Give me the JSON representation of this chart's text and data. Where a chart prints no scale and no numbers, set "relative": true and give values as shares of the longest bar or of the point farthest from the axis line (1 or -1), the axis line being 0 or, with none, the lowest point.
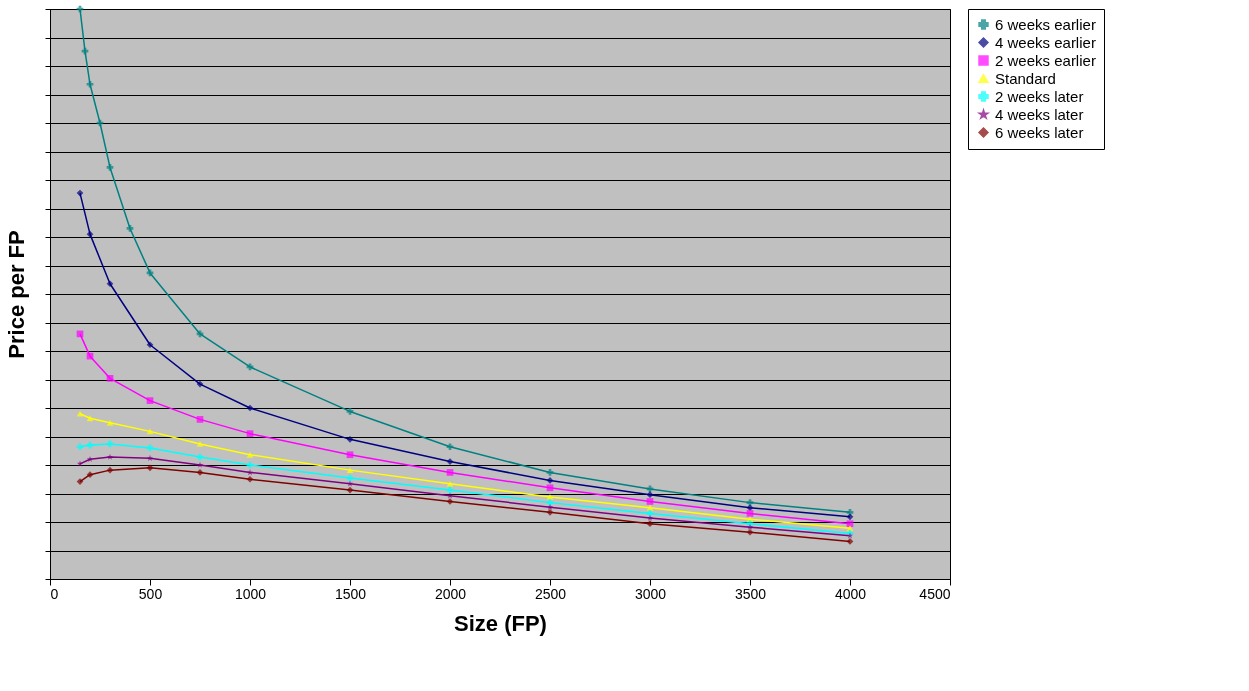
{
  "chart_data": {
    "type": "line",
    "xlabel": "Size (FP)",
    "ylabel": "Price per FP",
    "relative": true,
    "xlim": [
      0,
      4500
    ],
    "xticks": [
      0,
      500,
      1000,
      1500,
      2000,
      2500,
      3000,
      3500,
      4000,
      4500
    ],
    "x": [
      150,
      200,
      300,
      500,
      750,
      1000,
      1500,
      2000,
      2500,
      3000,
      3500,
      4000
    ],
    "grid": "y",
    "legend": "right",
    "line_style": "solid",
    "series": [
      {
        "name": "6 weeks earlier",
        "color": "#008080",
        "marker": "cross",
        "x": [
          150,
          175,
          200,
          250,
          300,
          400,
          500,
          750,
          1000,
          1500,
          2000,
          2500,
          3000,
          3500,
          4000
        ],
        "values": [
          1.0,
          0.926,
          0.868,
          0.8,
          0.722,
          0.615,
          0.537,
          0.43,
          0.372,
          0.294,
          0.232,
          0.187,
          0.158,
          0.134,
          0.117
        ]
      },
      {
        "name": "4 weeks earlier",
        "color": "#000080",
        "marker": "diamond",
        "values": [
          0.677,
          0.605,
          0.518,
          0.411,
          0.342,
          0.3,
          0.245,
          0.206,
          0.173,
          0.148,
          0.125,
          0.109
        ]
      },
      {
        "name": "2 weeks earlier",
        "color": "#ff00ff",
        "marker": "square",
        "values": [
          0.43,
          0.391,
          0.352,
          0.313,
          0.28,
          0.255,
          0.218,
          0.187,
          0.16,
          0.136,
          0.115,
          0.097
        ]
      },
      {
        "name": "Standard",
        "color": "#ffff00",
        "marker": "triangle",
        "values": [
          0.29,
          0.282,
          0.274,
          0.259,
          0.237,
          0.218,
          0.191,
          0.167,
          0.144,
          0.125,
          0.105,
          0.089
        ]
      },
      {
        "name": "2 weeks later",
        "color": "#00ffff",
        "marker": "cross",
        "values": [
          0.232,
          0.235,
          0.237,
          0.23,
          0.214,
          0.2,
          0.177,
          0.156,
          0.134,
          0.115,
          0.097,
          0.08
        ]
      },
      {
        "name": "4 weeks later",
        "color": "#800080",
        "marker": "star",
        "values": [
          0.202,
          0.21,
          0.214,
          0.212,
          0.2,
          0.187,
          0.167,
          0.146,
          0.126,
          0.107,
          0.091,
          0.076
        ]
      },
      {
        "name": "6 weeks later",
        "color": "#800000",
        "marker": "diamond",
        "values": [
          0.171,
          0.183,
          0.191,
          0.195,
          0.187,
          0.175,
          0.156,
          0.136,
          0.117,
          0.097,
          0.082,
          0.066
        ]
      }
    ]
  }
}
